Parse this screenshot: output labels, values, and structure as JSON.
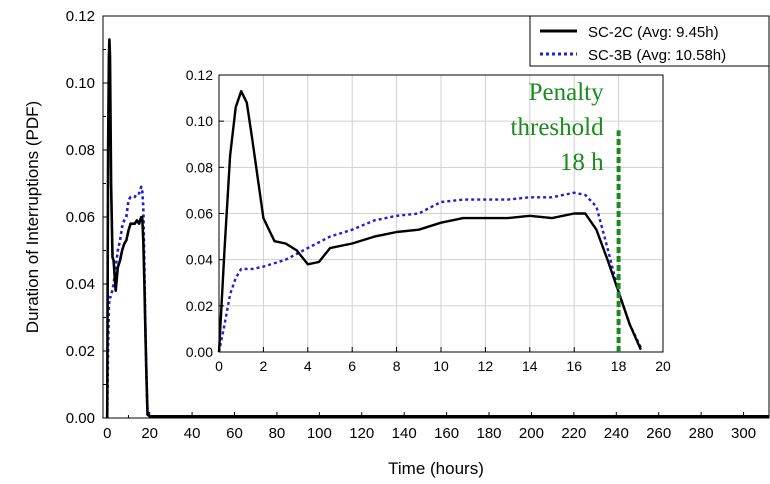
{
  "chart_data": [
    {
      "id": "main",
      "type": "line",
      "xlabel": "Time (hours)",
      "ylabel": "Duration of Interruptions (PDF)",
      "xlim": [
        -2,
        312
      ],
      "ylim": [
        0,
        0.12
      ],
      "xticks": [
        "0",
        "20",
        "40",
        "60",
        "80",
        "100",
        "120",
        "140",
        "160",
        "180",
        "200",
        "220",
        "240",
        "260",
        "280",
        "300"
      ],
      "xtick_values": [
        0,
        20,
        40,
        60,
        80,
        100,
        120,
        140,
        160,
        180,
        200,
        220,
        240,
        260,
        280,
        300
      ],
      "yticks": [
        "0.00",
        "0.02",
        "0.04",
        "0.06",
        "0.08",
        "0.10",
        "0.12"
      ],
      "ytick_values": [
        0,
        0.02,
        0.04,
        0.06,
        0.08,
        0.1,
        0.12
      ],
      "grid": false,
      "legend_position": "top-right",
      "series": [
        {
          "name": "SC-2C (Avg: 9.45h)",
          "color": "#000000",
          "dash": "solid",
          "x": [
            0,
            0.4,
            0.8,
            1.0,
            1.3,
            1.8,
            2.5,
            3.0,
            4.0,
            5,
            6,
            7,
            8,
            9,
            10,
            11,
            12,
            13,
            14,
            15,
            16,
            16.5,
            17,
            17.5,
            18,
            18.5,
            19,
            20,
            25,
            50,
            100,
            150,
            200,
            250,
            300,
            312
          ],
          "y": [
            0,
            0.08,
            0.108,
            0.113,
            0.108,
            0.07,
            0.048,
            0.047,
            0.038,
            0.045,
            0.047,
            0.05,
            0.052,
            0.053,
            0.056,
            0.058,
            0.058,
            0.058,
            0.059,
            0.058,
            0.06,
            0.06,
            0.053,
            0.04,
            0.026,
            0.012,
            0.001,
            0.0005,
            0.0005,
            0.0005,
            0.0005,
            0.0005,
            0.0005,
            0.0005,
            0.0005,
            0.0005
          ]
        },
        {
          "name": "SC-3B (Avg: 10.58h)",
          "color": "#1f1fd6",
          "dash": "dotted",
          "x": [
            0,
            0.4,
            0.8,
            1.0,
            1.5,
            2,
            3,
            4,
            5,
            6,
            7,
            8,
            9,
            10,
            11,
            12,
            13,
            14,
            15,
            16,
            16.5,
            17,
            17.5,
            18,
            18.5,
            19,
            20,
            25,
            50,
            100,
            150,
            200,
            250,
            300,
            312
          ],
          "y": [
            0,
            0.022,
            0.033,
            0.036,
            0.036,
            0.037,
            0.04,
            0.045,
            0.05,
            0.053,
            0.057,
            0.059,
            0.06,
            0.065,
            0.066,
            0.066,
            0.066,
            0.067,
            0.067,
            0.069,
            0.068,
            0.063,
            0.045,
            0.026,
            0.012,
            0.002,
            0.0005,
            0.0005,
            0.0005,
            0.0005,
            0.0005,
            0.0005,
            0.0005,
            0.0005,
            0.0005
          ]
        }
      ]
    },
    {
      "id": "inset",
      "type": "line",
      "xlabel": "",
      "ylabel": "",
      "xlim": [
        0,
        20
      ],
      "ylim": [
        0,
        0.12
      ],
      "xticks": [
        "0",
        "2",
        "4",
        "6",
        "8",
        "10",
        "12",
        "14",
        "16",
        "18",
        "20"
      ],
      "xtick_values": [
        0,
        2,
        4,
        6,
        8,
        10,
        12,
        14,
        16,
        18,
        20
      ],
      "yticks": [
        "0.00",
        "0.02",
        "0.04",
        "0.06",
        "0.08",
        "0.10",
        "0.12"
      ],
      "ytick_values": [
        0,
        0.02,
        0.04,
        0.06,
        0.08,
        0.1,
        0.12
      ],
      "grid": true,
      "series": [
        {
          "name": "SC-2C (Avg: 9.45h)",
          "color": "#000000",
          "dash": "solid",
          "x": [
            0,
            0.25,
            0.5,
            0.75,
            1.0,
            1.25,
            1.5,
            2.0,
            2.5,
            3.0,
            3.5,
            4.0,
            4.5,
            5,
            6,
            7,
            8,
            9,
            10,
            11,
            12,
            13,
            14,
            15,
            16,
            16.5,
            17,
            17.5,
            18,
            18.5,
            19
          ],
          "y": [
            0,
            0.045,
            0.085,
            0.106,
            0.113,
            0.108,
            0.092,
            0.058,
            0.048,
            0.047,
            0.044,
            0.038,
            0.039,
            0.045,
            0.047,
            0.05,
            0.052,
            0.053,
            0.056,
            0.058,
            0.058,
            0.058,
            0.059,
            0.058,
            0.06,
            0.06,
            0.053,
            0.04,
            0.026,
            0.012,
            0.001
          ]
        },
        {
          "name": "SC-3B (Avg: 10.58h)",
          "color": "#1f1fd6",
          "dash": "dotted",
          "x": [
            0,
            0.25,
            0.5,
            0.75,
            1.0,
            1.5,
            2,
            3,
            4,
            5,
            6,
            7,
            8,
            9,
            10,
            11,
            12,
            13,
            14,
            15,
            16,
            16.5,
            17,
            17.5,
            18,
            18.5,
            19
          ],
          "y": [
            0,
            0.012,
            0.025,
            0.032,
            0.036,
            0.036,
            0.037,
            0.04,
            0.045,
            0.05,
            0.053,
            0.057,
            0.059,
            0.06,
            0.065,
            0.066,
            0.066,
            0.066,
            0.067,
            0.067,
            0.069,
            0.068,
            0.063,
            0.045,
            0.026,
            0.012,
            0.002
          ]
        }
      ],
      "threshold": {
        "x": 18,
        "y_top": 0.096,
        "color": "#1a8a1a",
        "label_lines": [
          "Penalty",
          "threshold",
          "18 h"
        ]
      }
    }
  ]
}
